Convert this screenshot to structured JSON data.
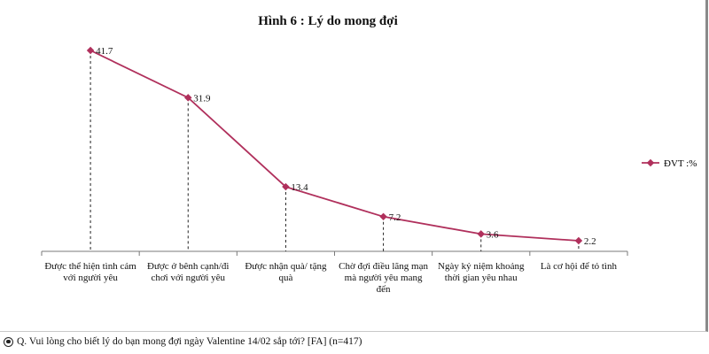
{
  "chart_data": {
    "type": "line",
    "title": "Hình 6 : Lý do mong đợi",
    "categories": [
      "Được thể hiện tình cảm với người yêu",
      "Được ở bênh cạnh/đi chơi với người yêu",
      "Được nhận quà/ tặng quà",
      "Chờ đợi điều lãng mạn mà người yêu mang đến",
      "Ngày kỷ niệm khoảng thời gian yêu nhau",
      "Là cơ hội để tỏ tình"
    ],
    "series": [
      {
        "name": "ĐVT :%",
        "values": [
          41.7,
          31.9,
          13.4,
          7.2,
          3.6,
          2.2
        ]
      }
    ],
    "data_labels": [
      "41.7",
      "31.9",
      "13.4",
      "7.2",
      "3.6",
      "2.2"
    ],
    "ylim": [
      0,
      45
    ],
    "legend_position": "right",
    "color": "#b0305c",
    "grid": false
  },
  "footer": {
    "icon": "radio-target-icon",
    "text": "Q. Vui lòng cho biết lý do bạn mong đợi ngày Valentine 14/02 sắp tới? [FA] (n=417)"
  }
}
